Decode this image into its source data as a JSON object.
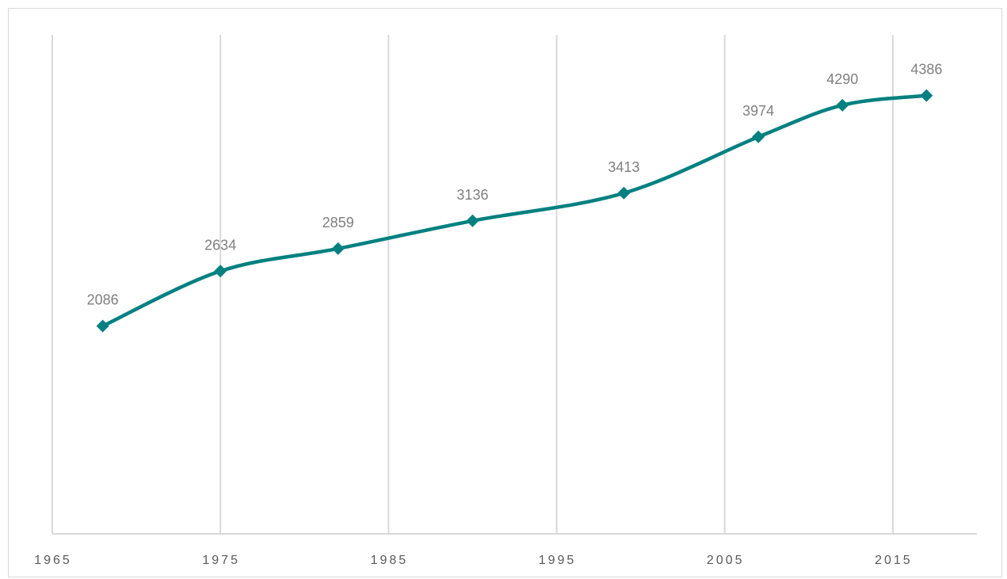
{
  "chart_data": {
    "type": "line",
    "title": "",
    "xlabel": "",
    "ylabel": "",
    "xlim": [
      1965,
      2020
    ],
    "ylim": [
      0,
      5000
    ],
    "x_ticks": [
      "1965",
      "1975",
      "1985",
      "1995",
      "2005",
      "2015"
    ],
    "grid": "vertical",
    "legend": "none",
    "series": [
      {
        "color": "#008080",
        "marker": "diamond",
        "smooth": true,
        "points": [
          {
            "x": 1968,
            "y": 2086,
            "label": "2086"
          },
          {
            "x": 1975,
            "y": 2634,
            "label": "2634"
          },
          {
            "x": 1982,
            "y": 2859,
            "label": "2859"
          },
          {
            "x": 1990,
            "y": 3136,
            "label": "3136"
          },
          {
            "x": 1999,
            "y": 3413,
            "label": "3413"
          },
          {
            "x": 2007,
            "y": 3974,
            "label": "3974"
          },
          {
            "x": 2012,
            "y": 4290,
            "label": "4290"
          },
          {
            "x": 2017,
            "y": 4386,
            "label": "4386"
          }
        ]
      }
    ]
  }
}
